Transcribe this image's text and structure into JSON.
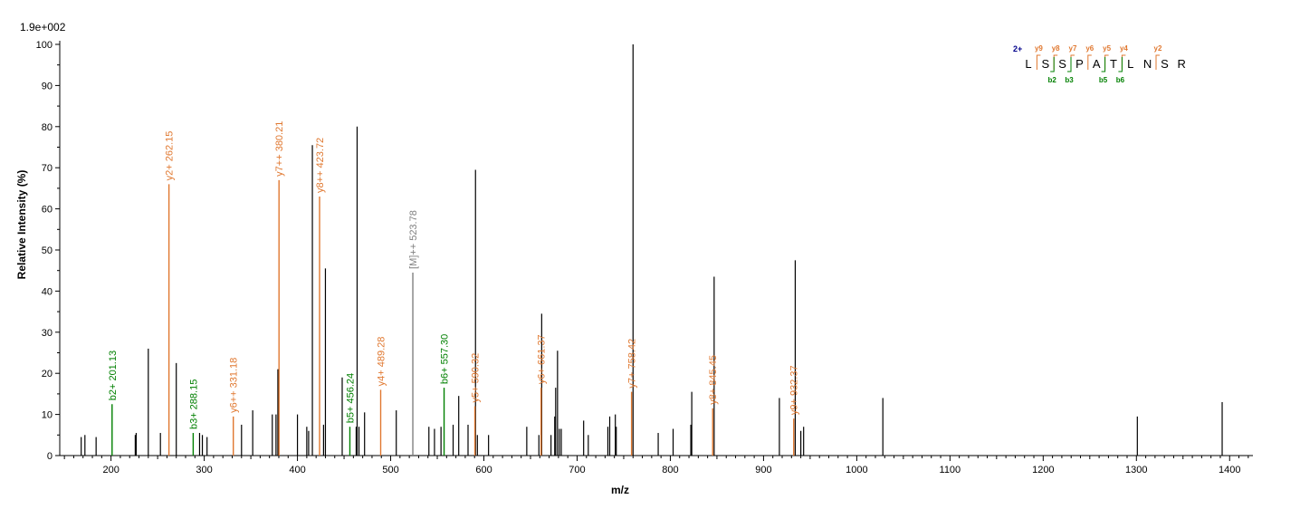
{
  "chart_data": {
    "type": "bar",
    "intensity_scale": "1.9e+002",
    "xlabel": "m/z",
    "ylabel": "Relative   Intensity (%)",
    "xlim": [
      145,
      1425
    ],
    "ylim": [
      0,
      100
    ],
    "x_ticks": [
      200,
      300,
      400,
      500,
      600,
      700,
      800,
      900,
      1000,
      1100,
      1200,
      1300,
      1400
    ],
    "y_ticks": [
      0,
      10,
      20,
      30,
      40,
      50,
      60,
      70,
      80,
      90,
      100
    ],
    "colors": {
      "unassigned": "#000000",
      "b_ion": "#008000",
      "y_ion": "#E07830",
      "precursor": "#808080",
      "charge": "#00008B"
    },
    "annotated_peaks": [
      {
        "mz": 201.13,
        "intensity": 12.5,
        "ion": "b",
        "label": "b2+ 201.13"
      },
      {
        "mz": 262.15,
        "intensity": 66,
        "ion": "y",
        "label": "y2+ 262.15"
      },
      {
        "mz": 288.15,
        "intensity": 5.5,
        "ion": "b",
        "label": "b3+ 288.15"
      },
      {
        "mz": 331.18,
        "intensity": 9.5,
        "ion": "y",
        "label": "y6++ 331.18"
      },
      {
        "mz": 380.21,
        "intensity": 67,
        "ion": "y",
        "label": "y7++ 380.21"
      },
      {
        "mz": 423.72,
        "intensity": 63,
        "ion": "y",
        "label": "y8++ 423.72"
      },
      {
        "mz": 456.24,
        "intensity": 7,
        "ion": "b",
        "label": "b5+ 456.24"
      },
      {
        "mz": 489.28,
        "intensity": 16,
        "ion": "y",
        "label": "y4+ 489.28"
      },
      {
        "mz": 523.78,
        "intensity": 44.5,
        "ion": "precursor",
        "label": "[M]++ 523.78"
      },
      {
        "mz": 557.3,
        "intensity": 16.5,
        "ion": "b",
        "label": "b6+ 557.30"
      },
      {
        "mz": 590.32,
        "intensity": 12,
        "ion": "y",
        "label": "y5+ 590.32"
      },
      {
        "mz": 661.37,
        "intensity": 16.5,
        "ion": "y",
        "label": "y6+ 661.37"
      },
      {
        "mz": 758.42,
        "intensity": 15.5,
        "ion": "y",
        "label": "y7+ 758.42"
      },
      {
        "mz": 845.45,
        "intensity": 11.5,
        "ion": "y",
        "label": "y8+ 845.45"
      },
      {
        "mz": 932.37,
        "intensity": 9,
        "ion": "y",
        "label": "y9+ 932.37"
      }
    ],
    "unassigned_peaks": [
      {
        "mz": 168,
        "intensity": 4.5
      },
      {
        "mz": 172,
        "intensity": 5
      },
      {
        "mz": 184,
        "intensity": 4.5
      },
      {
        "mz": 226,
        "intensity": 5
      },
      {
        "mz": 227,
        "intensity": 5.5
      },
      {
        "mz": 240,
        "intensity": 26
      },
      {
        "mz": 253,
        "intensity": 5.5
      },
      {
        "mz": 270,
        "intensity": 22.5
      },
      {
        "mz": 295,
        "intensity": 5.5
      },
      {
        "mz": 298,
        "intensity": 5
      },
      {
        "mz": 303,
        "intensity": 4.5
      },
      {
        "mz": 340,
        "intensity": 7.5
      },
      {
        "mz": 352,
        "intensity": 11
      },
      {
        "mz": 373,
        "intensity": 10
      },
      {
        "mz": 377,
        "intensity": 10
      },
      {
        "mz": 379,
        "intensity": 21
      },
      {
        "mz": 400,
        "intensity": 10
      },
      {
        "mz": 410,
        "intensity": 7
      },
      {
        "mz": 412,
        "intensity": 6
      },
      {
        "mz": 416,
        "intensity": 75.5
      },
      {
        "mz": 428,
        "intensity": 7.5
      },
      {
        "mz": 430,
        "intensity": 45.5
      },
      {
        "mz": 448,
        "intensity": 19
      },
      {
        "mz": 463,
        "intensity": 7
      },
      {
        "mz": 464,
        "intensity": 80
      },
      {
        "mz": 466,
        "intensity": 7
      },
      {
        "mz": 472,
        "intensity": 10.5
      },
      {
        "mz": 506,
        "intensity": 11
      },
      {
        "mz": 541,
        "intensity": 7
      },
      {
        "mz": 547,
        "intensity": 6.5
      },
      {
        "mz": 554,
        "intensity": 7
      },
      {
        "mz": 567,
        "intensity": 7.5
      },
      {
        "mz": 573,
        "intensity": 14.5
      },
      {
        "mz": 583,
        "intensity": 7.5
      },
      {
        "mz": 591,
        "intensity": 69.5
      },
      {
        "mz": 593,
        "intensity": 5
      },
      {
        "mz": 605,
        "intensity": 5
      },
      {
        "mz": 646,
        "intensity": 7
      },
      {
        "mz": 659,
        "intensity": 5
      },
      {
        "mz": 662,
        "intensity": 34.5
      },
      {
        "mz": 672,
        "intensity": 5
      },
      {
        "mz": 676,
        "intensity": 9.5
      },
      {
        "mz": 677,
        "intensity": 16.5
      },
      {
        "mz": 679,
        "intensity": 25.5
      },
      {
        "mz": 681,
        "intensity": 6.5
      },
      {
        "mz": 683,
        "intensity": 6.5
      },
      {
        "mz": 707,
        "intensity": 8.5
      },
      {
        "mz": 712,
        "intensity": 5
      },
      {
        "mz": 733,
        "intensity": 7
      },
      {
        "mz": 735,
        "intensity": 9.5
      },
      {
        "mz": 741,
        "intensity": 10
      },
      {
        "mz": 742,
        "intensity": 7
      },
      {
        "mz": 760,
        "intensity": 100
      },
      {
        "mz": 787,
        "intensity": 5.5
      },
      {
        "mz": 803,
        "intensity": 6.5
      },
      {
        "mz": 822,
        "intensity": 7.5
      },
      {
        "mz": 823,
        "intensity": 15.5
      },
      {
        "mz": 847,
        "intensity": 43.5
      },
      {
        "mz": 917,
        "intensity": 14
      },
      {
        "mz": 934,
        "intensity": 47.5
      },
      {
        "mz": 940,
        "intensity": 6
      },
      {
        "mz": 943,
        "intensity": 7
      },
      {
        "mz": 1028,
        "intensity": 14
      },
      {
        "mz": 1301,
        "intensity": 9.5
      },
      {
        "mz": 1392,
        "intensity": 13
      }
    ],
    "sequence": {
      "charge": "2+",
      "residues": [
        "L",
        "S",
        "S",
        "P",
        "A",
        "T",
        "L",
        "N",
        "S",
        "R"
      ],
      "y_ions": [
        {
          "after": 1,
          "label": "y9"
        },
        {
          "after": 2,
          "label": "y8"
        },
        {
          "after": 3,
          "label": "y7"
        },
        {
          "after": 4,
          "label": "y6"
        },
        {
          "after": 5,
          "label": "y5"
        },
        {
          "after": 6,
          "label": "y4"
        },
        {
          "after": 8,
          "label": "y2"
        }
      ],
      "b_ions": [
        {
          "after": 2,
          "label": "b2"
        },
        {
          "after": 3,
          "label": "b3"
        },
        {
          "after": 5,
          "label": "b5"
        },
        {
          "after": 6,
          "label": "b6"
        }
      ]
    }
  }
}
